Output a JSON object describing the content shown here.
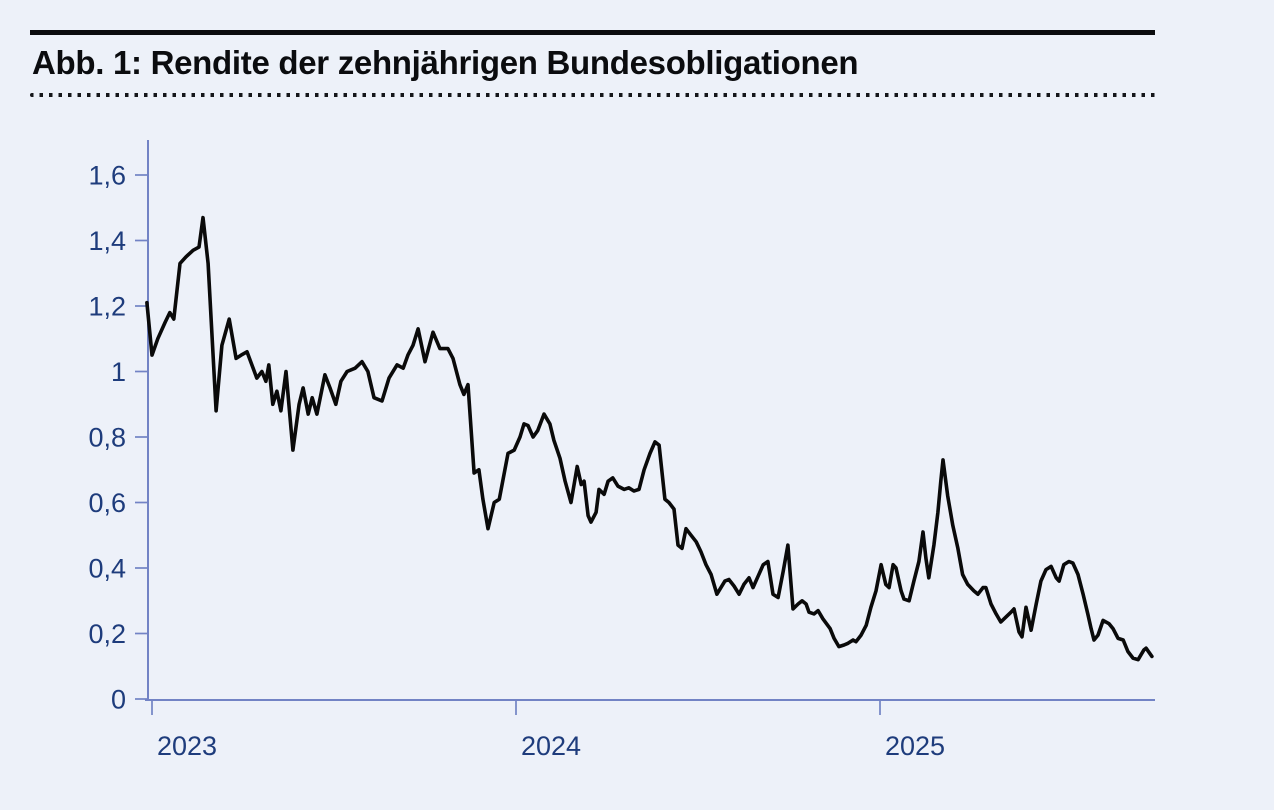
{
  "figure": {
    "title": "Abb. 1: Rendite der zehnjährigen Bundesobligationen"
  },
  "colors": {
    "background": "#edf1f9",
    "title_text": "#0b0c0f",
    "top_rule": "#0b0c0f",
    "axis": "#7283c5",
    "axis_labels": "#1e3c7c",
    "series_line": "#0a0a0a"
  },
  "chart_data": {
    "type": "line",
    "title": "Abb. 1: Rendite der zehnjährigen Bundesobligationen",
    "xlabel": "",
    "ylabel": "",
    "grid": false,
    "legend": "none",
    "x_unit": "year",
    "xlim": [
      2022.985,
      2025.76
    ],
    "ylim": [
      0,
      1.707
    ],
    "xticks": [
      {
        "value": 2023,
        "label": "2023"
      },
      {
        "value": 2024,
        "label": "2024"
      },
      {
        "value": 2025,
        "label": "2025"
      }
    ],
    "yticks": [
      {
        "value": 0,
        "label": "0"
      },
      {
        "value": 0.2,
        "label": "0,2"
      },
      {
        "value": 0.4,
        "label": "0,4"
      },
      {
        "value": 0.6,
        "label": "0,6"
      },
      {
        "value": 0.8,
        "label": "0,8"
      },
      {
        "value": 1.0,
        "label": "1"
      },
      {
        "value": 1.2,
        "label": "1,2"
      },
      {
        "value": 1.4,
        "label": "1,4"
      },
      {
        "value": 1.6,
        "label": "1,6"
      }
    ],
    "series": [
      {
        "name": "Rendite zehnjährige Bundesobligationen",
        "color": "#0a0a0a",
        "points": [
          [
            2022.986,
            1.21
          ],
          [
            2023.0,
            1.05
          ],
          [
            2023.016,
            1.1
          ],
          [
            2023.036,
            1.15
          ],
          [
            2023.049,
            1.18
          ],
          [
            2023.06,
            1.16
          ],
          [
            2023.077,
            1.33
          ],
          [
            2023.093,
            1.35
          ],
          [
            2023.113,
            1.37
          ],
          [
            2023.129,
            1.38
          ],
          [
            2023.14,
            1.47
          ],
          [
            2023.154,
            1.33
          ],
          [
            2023.176,
            0.88
          ],
          [
            2023.192,
            1.08
          ],
          [
            2023.212,
            1.16
          ],
          [
            2023.231,
            1.04
          ],
          [
            2023.245,
            1.05
          ],
          [
            2023.261,
            1.06
          ],
          [
            2023.288,
            0.98
          ],
          [
            2023.302,
            1.0
          ],
          [
            2023.313,
            0.97
          ],
          [
            2023.321,
            1.02
          ],
          [
            2023.332,
            0.9
          ],
          [
            2023.343,
            0.94
          ],
          [
            2023.354,
            0.88
          ],
          [
            2023.368,
            1.0
          ],
          [
            2023.387,
            0.76
          ],
          [
            2023.404,
            0.9
          ],
          [
            2023.415,
            0.95
          ],
          [
            2023.429,
            0.87
          ],
          [
            2023.44,
            0.92
          ],
          [
            2023.453,
            0.87
          ],
          [
            2023.475,
            0.99
          ],
          [
            2023.489,
            0.95
          ],
          [
            2023.505,
            0.9
          ],
          [
            2023.519,
            0.97
          ],
          [
            2023.536,
            1.0
          ],
          [
            2023.558,
            1.01
          ],
          [
            2023.577,
            1.03
          ],
          [
            2023.593,
            1.0
          ],
          [
            2023.61,
            0.92
          ],
          [
            2023.632,
            0.91
          ],
          [
            2023.651,
            0.98
          ],
          [
            2023.673,
            1.02
          ],
          [
            2023.69,
            1.01
          ],
          [
            2023.703,
            1.05
          ],
          [
            2023.717,
            1.08
          ],
          [
            2023.731,
            1.13
          ],
          [
            2023.75,
            1.03
          ],
          [
            2023.772,
            1.12
          ],
          [
            2023.791,
            1.07
          ],
          [
            2023.813,
            1.07
          ],
          [
            2023.827,
            1.04
          ],
          [
            2023.846,
            0.96
          ],
          [
            2023.857,
            0.93
          ],
          [
            2023.868,
            0.96
          ],
          [
            2023.885,
            0.69
          ],
          [
            2023.898,
            0.7
          ],
          [
            2023.909,
            0.61
          ],
          [
            2023.923,
            0.52
          ],
          [
            2023.94,
            0.6
          ],
          [
            2023.954,
            0.61
          ],
          [
            2023.978,
            0.75
          ],
          [
            2023.995,
            0.76
          ],
          [
            2024.011,
            0.8
          ],
          [
            2024.022,
            0.84
          ],
          [
            2024.033,
            0.835
          ],
          [
            2024.047,
            0.8
          ],
          [
            2024.06,
            0.82
          ],
          [
            2024.077,
            0.87
          ],
          [
            2024.093,
            0.84
          ],
          [
            2024.104,
            0.79
          ],
          [
            2024.121,
            0.735
          ],
          [
            2024.135,
            0.665
          ],
          [
            2024.151,
            0.6
          ],
          [
            2024.168,
            0.71
          ],
          [
            2024.179,
            0.655
          ],
          [
            2024.187,
            0.665
          ],
          [
            2024.198,
            0.56
          ],
          [
            2024.206,
            0.54
          ],
          [
            2024.22,
            0.57
          ],
          [
            2024.228,
            0.64
          ],
          [
            2024.242,
            0.625
          ],
          [
            2024.253,
            0.665
          ],
          [
            2024.266,
            0.675
          ],
          [
            2024.28,
            0.65
          ],
          [
            2024.297,
            0.64
          ],
          [
            2024.31,
            0.645
          ],
          [
            2024.324,
            0.635
          ],
          [
            2024.338,
            0.64
          ],
          [
            2024.352,
            0.7
          ],
          [
            2024.368,
            0.75
          ],
          [
            2024.382,
            0.785
          ],
          [
            2024.393,
            0.775
          ],
          [
            2024.409,
            0.61
          ],
          [
            2024.42,
            0.6
          ],
          [
            2024.434,
            0.58
          ],
          [
            2024.445,
            0.47
          ],
          [
            2024.456,
            0.46
          ],
          [
            2024.467,
            0.52
          ],
          [
            2024.481,
            0.5
          ],
          [
            2024.495,
            0.48
          ],
          [
            2024.508,
            0.45
          ],
          [
            2024.522,
            0.41
          ],
          [
            2024.536,
            0.38
          ],
          [
            2024.552,
            0.32
          ],
          [
            2024.574,
            0.36
          ],
          [
            2024.585,
            0.365
          ],
          [
            2024.599,
            0.345
          ],
          [
            2024.613,
            0.32
          ],
          [
            2024.626,
            0.35
          ],
          [
            2024.64,
            0.37
          ],
          [
            2024.651,
            0.34
          ],
          [
            2024.665,
            0.375
          ],
          [
            2024.679,
            0.41
          ],
          [
            2024.692,
            0.42
          ],
          [
            2024.706,
            0.32
          ],
          [
            2024.72,
            0.31
          ],
          [
            2024.734,
            0.39
          ],
          [
            2024.747,
            0.47
          ],
          [
            2024.761,
            0.275
          ],
          [
            2024.775,
            0.29
          ],
          [
            2024.786,
            0.3
          ],
          [
            2024.797,
            0.29
          ],
          [
            2024.805,
            0.265
          ],
          [
            2024.819,
            0.26
          ],
          [
            2024.83,
            0.27
          ],
          [
            2024.843,
            0.245
          ],
          [
            2024.863,
            0.215
          ],
          [
            2024.874,
            0.185
          ],
          [
            2024.887,
            0.16
          ],
          [
            2024.901,
            0.165
          ],
          [
            2024.912,
            0.17
          ],
          [
            2024.926,
            0.18
          ],
          [
            2024.934,
            0.175
          ],
          [
            2024.948,
            0.195
          ],
          [
            2024.962,
            0.225
          ],
          [
            2024.975,
            0.28
          ],
          [
            2024.989,
            0.33
          ],
          [
            2025.003,
            0.41
          ],
          [
            2025.016,
            0.35
          ],
          [
            2025.025,
            0.34
          ],
          [
            2025.036,
            0.41
          ],
          [
            2025.044,
            0.4
          ],
          [
            2025.058,
            0.33
          ],
          [
            2025.066,
            0.305
          ],
          [
            2025.08,
            0.3
          ],
          [
            2025.093,
            0.36
          ],
          [
            2025.107,
            0.42
          ],
          [
            2025.118,
            0.51
          ],
          [
            2025.126,
            0.43
          ],
          [
            2025.134,
            0.37
          ],
          [
            2025.148,
            0.47
          ],
          [
            2025.159,
            0.57
          ],
          [
            2025.167,
            0.665
          ],
          [
            2025.173,
            0.73
          ],
          [
            2025.186,
            0.62
          ],
          [
            2025.2,
            0.53
          ],
          [
            2025.214,
            0.46
          ],
          [
            2025.227,
            0.38
          ],
          [
            2025.241,
            0.35
          ],
          [
            2025.258,
            0.33
          ],
          [
            2025.269,
            0.32
          ],
          [
            2025.283,
            0.34
          ],
          [
            2025.291,
            0.34
          ],
          [
            2025.305,
            0.29
          ],
          [
            2025.319,
            0.26
          ],
          [
            2025.332,
            0.235
          ],
          [
            2025.346,
            0.25
          ],
          [
            2025.36,
            0.265
          ],
          [
            2025.368,
            0.275
          ],
          [
            2025.382,
            0.205
          ],
          [
            2025.39,
            0.19
          ],
          [
            2025.401,
            0.28
          ],
          [
            2025.415,
            0.21
          ],
          [
            2025.429,
            0.29
          ],
          [
            2025.442,
            0.36
          ],
          [
            2025.456,
            0.395
          ],
          [
            2025.47,
            0.405
          ],
          [
            2025.484,
            0.37
          ],
          [
            2025.492,
            0.36
          ],
          [
            2025.505,
            0.41
          ],
          [
            2025.519,
            0.42
          ],
          [
            2025.53,
            0.415
          ],
          [
            2025.544,
            0.38
          ],
          [
            2025.558,
            0.32
          ],
          [
            2025.571,
            0.26
          ],
          [
            2025.58,
            0.215
          ],
          [
            2025.588,
            0.18
          ],
          [
            2025.599,
            0.195
          ],
          [
            2025.613,
            0.24
          ],
          [
            2025.629,
            0.23
          ],
          [
            2025.64,
            0.215
          ],
          [
            2025.654,
            0.185
          ],
          [
            2025.668,
            0.18
          ],
          [
            2025.681,
            0.145
          ],
          [
            2025.695,
            0.125
          ],
          [
            2025.709,
            0.12
          ],
          [
            2025.725,
            0.15
          ],
          [
            2025.731,
            0.155
          ],
          [
            2025.747,
            0.13
          ]
        ]
      }
    ]
  }
}
